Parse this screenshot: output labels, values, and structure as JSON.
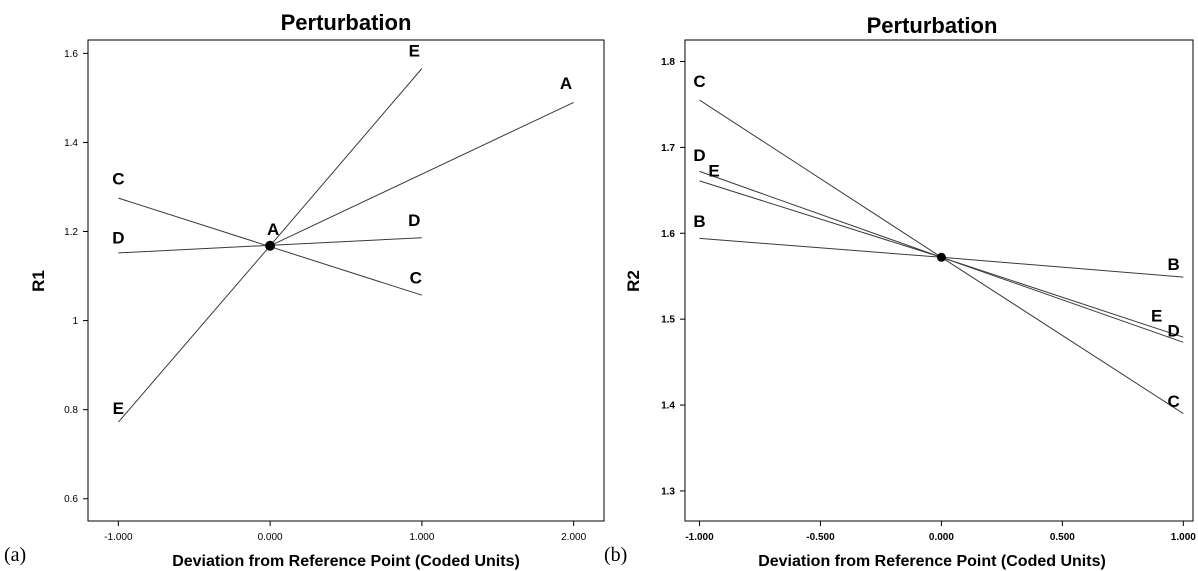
{
  "chart_data": [
    {
      "type": "line",
      "panel_label": "(a)",
      "title": "Perturbation",
      "xlabel": "Deviation from Reference Point (Coded Units)",
      "ylabel": "R1",
      "xlim": [
        -1.2,
        2.2
      ],
      "ylim": [
        0.55,
        1.63
      ],
      "x_ticks": [
        "-1.000",
        "0.000",
        "1.000",
        "2.000"
      ],
      "y_ticks": [
        "0.6",
        "0.8",
        "1",
        "1.2",
        "1.4",
        "1.6"
      ],
      "series": [
        {
          "name": "A",
          "x": [
            0,
            2
          ],
          "y": [
            1.168,
            1.49
          ],
          "labels": [
            {
              "text": "A",
              "x": 0.02,
              "y": 1.192
            },
            {
              "text": "A",
              "x": 1.95,
              "y": 1.52
            }
          ]
        },
        {
          "name": "C",
          "x": [
            -1,
            1
          ],
          "y": [
            1.275,
            1.057
          ],
          "labels": [
            {
              "text": "C",
              "x": -1.0,
              "y": 1.305
            },
            {
              "text": "C",
              "x": 0.96,
              "y": 1.083
            }
          ]
        },
        {
          "name": "D",
          "x": [
            -1,
            1
          ],
          "y": [
            1.152,
            1.186
          ],
          "labels": [
            {
              "text": "D",
              "x": -1.0,
              "y": 1.173
            },
            {
              "text": "D",
              "x": 0.95,
              "y": 1.212
            }
          ]
        },
        {
          "name": "E",
          "x": [
            -1,
            0,
            1
          ],
          "y": [
            0.772,
            1.168,
            1.566
          ],
          "labels": [
            {
              "text": "E",
              "x": -1.0,
              "y": 0.79
            },
            {
              "text": "E",
              "x": 0.95,
              "y": 1.593
            }
          ]
        }
      ],
      "reference_point": {
        "x": 0,
        "y": 1.168
      }
    },
    {
      "type": "line",
      "panel_label": "(b)",
      "title": "Perturbation",
      "xlabel": "Deviation from Reference Point (Coded Units)",
      "ylabel": "R2",
      "xlim": [
        -1.06,
        1.04
      ],
      "ylim": [
        1.265,
        1.825
      ],
      "x_ticks": [
        "-1.000",
        "-0.500",
        "0.000",
        "0.500",
        "1.000"
      ],
      "y_ticks": [
        "1.3",
        "1.4",
        "1.5",
        "1.6",
        "1.7",
        "1.8"
      ],
      "series": [
        {
          "name": "B",
          "x": [
            -1,
            0,
            1
          ],
          "y": [
            1.594,
            1.572,
            1.549
          ],
          "labels": [
            {
              "text": "B",
              "x": -1.0,
              "y": 1.607
            },
            {
              "text": "B",
              "x": 0.96,
              "y": 1.557
            }
          ]
        },
        {
          "name": "C",
          "x": [
            -1,
            0,
            1
          ],
          "y": [
            1.755,
            1.572,
            1.39
          ],
          "labels": [
            {
              "text": "C",
              "x": -1.0,
              "y": 1.77
            },
            {
              "text": "C",
              "x": 0.96,
              "y": 1.398
            }
          ]
        },
        {
          "name": "D",
          "x": [
            -1,
            0,
            1
          ],
          "y": [
            1.672,
            1.572,
            1.473
          ],
          "labels": [
            {
              "text": "D",
              "x": -1.0,
              "y": 1.684
            },
            {
              "text": "D",
              "x": 0.96,
              "y": 1.48
            }
          ]
        },
        {
          "name": "E",
          "x": [
            -1,
            0,
            1
          ],
          "y": [
            1.661,
            1.572,
            1.479
          ],
          "labels": [
            {
              "text": "E",
              "x": -0.94,
              "y": 1.666
            },
            {
              "text": "E",
              "x": 0.89,
              "y": 1.497
            }
          ]
        }
      ],
      "reference_point": {
        "x": 0,
        "y": 1.572
      }
    }
  ]
}
